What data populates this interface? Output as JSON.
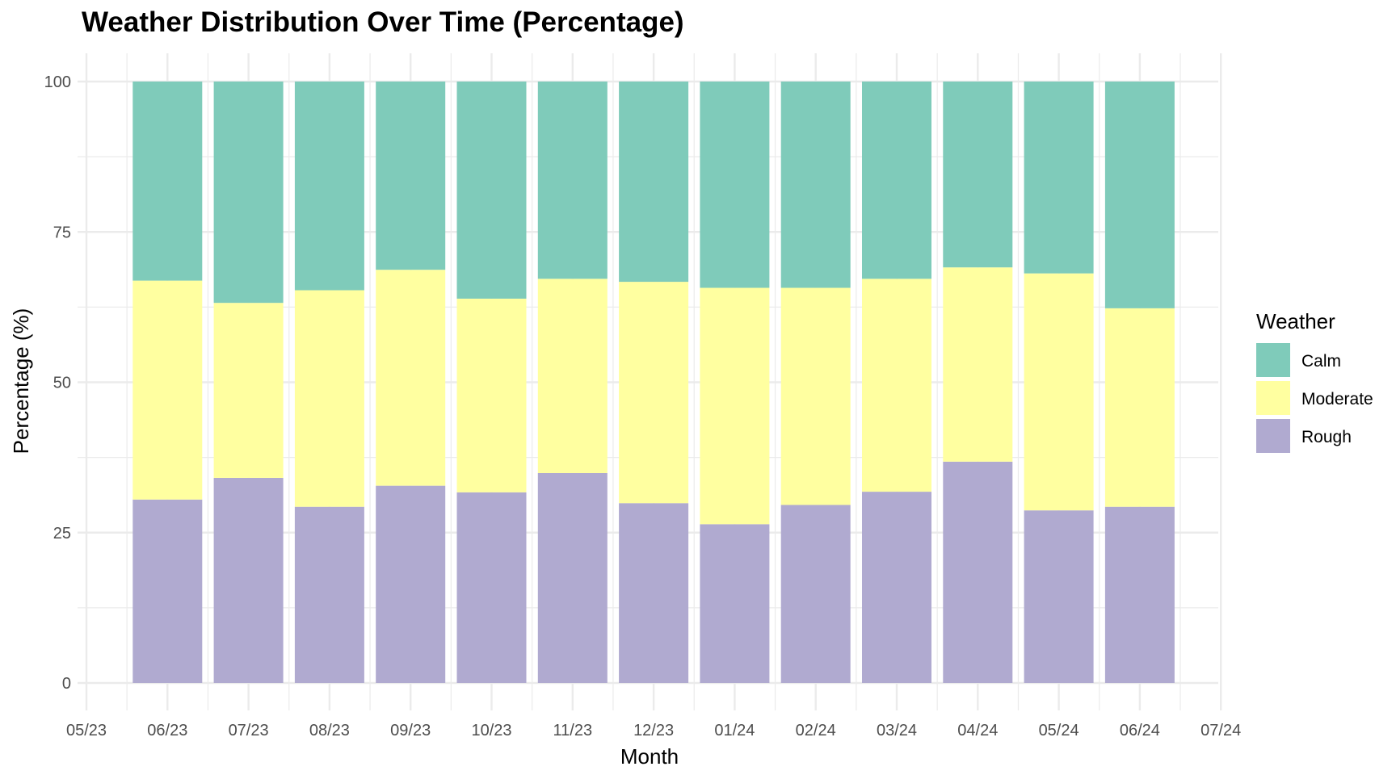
{
  "chart_data": {
    "type": "bar",
    "stacked": true,
    "title": "Weather Distribution Over Time (Percentage)",
    "xlabel": "Month",
    "ylabel": "Percentage (%)",
    "x_tick_labels": [
      "05/23",
      "06/23",
      "07/23",
      "08/23",
      "09/23",
      "10/23",
      "11/23",
      "12/23",
      "01/24",
      "02/24",
      "03/24",
      "04/24",
      "05/24",
      "06/24",
      "07/24"
    ],
    "y_tick_labels": [
      "0",
      "25",
      "50",
      "75",
      "100"
    ],
    "categories": [
      "06/23",
      "07/23",
      "08/23",
      "09/23",
      "10/23",
      "11/23",
      "12/23",
      "01/24",
      "02/24",
      "03/24",
      "04/24",
      "05/24",
      "06/24"
    ],
    "series": [
      {
        "name": "Rough",
        "color": "#b0aad0",
        "values": [
          30.5,
          34.1,
          29.3,
          32.8,
          31.7,
          34.9,
          29.9,
          26.4,
          29.6,
          31.8,
          36.8,
          28.7,
          29.3
        ]
      },
      {
        "name": "Moderate",
        "color": "#ffffa0",
        "values": [
          36.4,
          29.1,
          36.0,
          35.9,
          32.2,
          32.3,
          36.8,
          39.3,
          36.1,
          35.4,
          32.3,
          39.4,
          33.0
        ]
      },
      {
        "name": "Calm",
        "color": "#7fcbba",
        "values": [
          33.1,
          36.8,
          34.7,
          31.3,
          36.1,
          32.8,
          33.3,
          34.3,
          34.3,
          32.8,
          30.9,
          31.9,
          37.7
        ]
      }
    ],
    "ylim": [
      0,
      100
    ],
    "y_ticks": [
      0,
      25,
      50,
      75,
      100
    ],
    "y_minor_ticks": [
      12.5,
      37.5,
      62.5,
      87.5
    ],
    "grid": true,
    "legend": {
      "title": "Weather",
      "placement": "right",
      "order": [
        "Calm",
        "Moderate",
        "Rough"
      ]
    },
    "grid_color": "#ebebeb",
    "background": "#ffffff"
  }
}
